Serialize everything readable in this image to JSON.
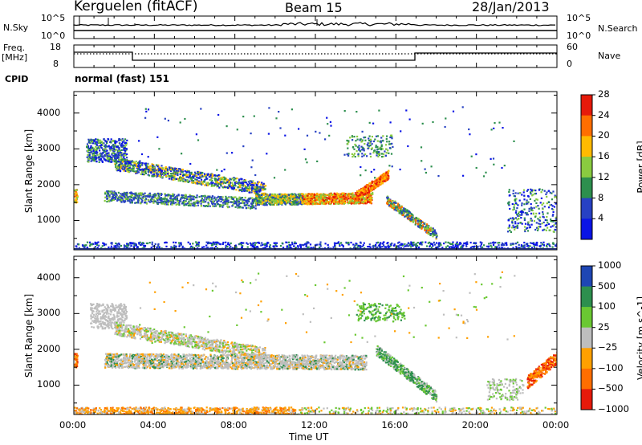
{
  "header": {
    "station": "Kerguelen (fitACF)",
    "beam": "Beam 15",
    "date": "28/Jan/2013"
  },
  "aux_panels": {
    "noise": {
      "left_label": "N.Sky",
      "right_label": "N.Search",
      "left_ticks": [
        "10^5",
        "10^0"
      ],
      "right_ticks": [
        "10^5",
        "10^0"
      ]
    },
    "freq": {
      "left_label_top": "Freq.",
      "left_label_unit": "[MHz]",
      "right_label": "Nave",
      "left_ticks": [
        "18",
        "8"
      ],
      "right_ticks": [
        "60",
        "0"
      ]
    },
    "cpid": {
      "label": "CPID",
      "mode_text": "normal (fast) 151"
    }
  },
  "chart_data": [
    {
      "type": "heatmap",
      "name": "power",
      "ylabel": "Slant Range [km]",
      "xlabel": "",
      "ylim": [
        180,
        4600
      ],
      "yticks": [
        "1000",
        "2000",
        "3000",
        "4000"
      ],
      "xlim": [
        "00:00",
        "24:00"
      ],
      "colorbar": {
        "label": "Power [dB]",
        "ticks": [
          "4",
          "8",
          "12",
          "16",
          "20",
          "24",
          "28"
        ],
        "colors": [
          "#0a14e6",
          "#2741c3",
          "#2d8f4e",
          "#8acb40",
          "#ffba00",
          "#ff6e00",
          "#e61a0a"
        ]
      },
      "features": [
        {
          "region": "00:00-00:10",
          "range": [
            1550,
            1850
          ],
          "level": "medium"
        },
        {
          "region": "00:30-02:40",
          "range": [
            2700,
            3300
          ],
          "level": "low-medium"
        },
        {
          "region": "01:30-09:00",
          "range": [
            1400,
            2300
          ],
          "level": "low-medium"
        },
        {
          "region": "08:00-15:00",
          "range": [
            1500,
            2100
          ],
          "level": "medium-high"
        },
        {
          "region": "14:00-15:30",
          "range": [
            1800,
            2400
          ],
          "level": "high"
        },
        {
          "region": "15:30-18:00",
          "range": [
            600,
            1600
          ],
          "level": "medium"
        },
        {
          "region": "21:00-23:59",
          "range": [
            700,
            1900
          ],
          "level": "low-medium"
        },
        {
          "region": "00:00-24:00",
          "range": [
            180,
            400
          ],
          "level": "low"
        }
      ]
    },
    {
      "type": "heatmap",
      "name": "velocity",
      "ylabel": "Slant Range [km]",
      "xlabel": "Time UT",
      "ylim": [
        180,
        4600
      ],
      "yticks": [
        "1000",
        "2000",
        "3000",
        "4000"
      ],
      "xlim": [
        "00:00",
        "24:00"
      ],
      "xticks": [
        "00:00",
        "04:00",
        "08:00",
        "12:00",
        "16:00",
        "20:00",
        "00:00"
      ],
      "colorbar": {
        "label": "Velocity [m s^-1]",
        "ticks": [
          "1000",
          "500",
          "100",
          "25",
          "−25",
          "−100",
          "−500",
          "−1000"
        ],
        "colors": [
          "#1e46b4",
          "#2d8f4e",
          "#6ac832",
          "#bebebe",
          "#ffa000",
          "#ff6e00",
          "#e61a0a"
        ]
      },
      "features": [
        {
          "region": "00:00-00:10",
          "range": [
            1550,
            1850
          ],
          "class": "-500"
        },
        {
          "region": "01:00-14:30",
          "range": [
            1300,
            2300
          ],
          "class": "ground scatter"
        },
        {
          "region": "14:00-16:30",
          "range": [
            2800,
            3300
          ],
          "class": "100"
        },
        {
          "region": "15:00-18:00",
          "range": [
            700,
            2000
          ],
          "class": "500"
        },
        {
          "region": "00:00-24:00",
          "range": [
            180,
            400
          ],
          "class": "-100"
        },
        {
          "region": "22:30-23:59",
          "range": [
            1000,
            1900
          ],
          "class": "-500"
        }
      ]
    }
  ],
  "colors": {
    "ground_scatter": "#bebebe",
    "axis": "#000000"
  }
}
